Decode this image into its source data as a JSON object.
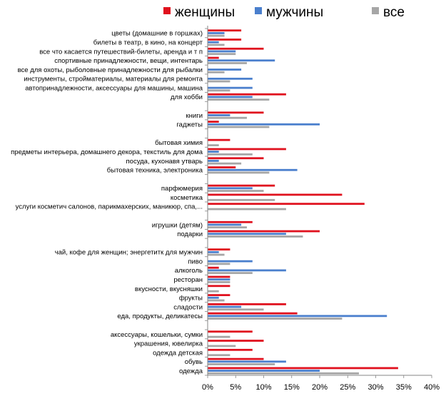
{
  "chart_data": {
    "type": "bar",
    "orientation": "horizontal",
    "xlim": [
      0,
      40
    ],
    "x_ticks": [
      "0%",
      "5%",
      "10%",
      "15%",
      "20%",
      "25%",
      "30%",
      "35%",
      "40%"
    ],
    "grid": false,
    "legend_position": "top",
    "series": [
      {
        "name": "женщины",
        "color": "#e0111e"
      },
      {
        "name": "мужчины",
        "color": "#4a7fcd"
      },
      {
        "name": "все",
        "color": "#a6a6a6"
      }
    ],
    "categories": [
      {
        "label": "цветы (домашние в горшках)",
        "values": [
          6,
          3,
          3
        ]
      },
      {
        "label": "билеты в театр, в кино, на концерт",
        "values": [
          6,
          2,
          3
        ]
      },
      {
        "label": "все что касается путешествий-билеты, аренда и т п",
        "values": [
          10,
          5,
          5
        ]
      },
      {
        "label": "спортивные принадлежности, вещи, интентарь",
        "values": [
          2,
          12,
          7
        ]
      },
      {
        "label": "все для охоты, рыболовные принадлежности для рыбалки",
        "values": [
          0,
          6,
          3
        ]
      },
      {
        "label": "инструменты, стройматериалы, материалы для ремонта",
        "values": [
          0,
          8,
          4
        ]
      },
      {
        "label": "автопринадлежности, аксессуары для машины, машина",
        "values": [
          0,
          8,
          4
        ]
      },
      {
        "label": "для хобби",
        "values": [
          14,
          8,
          11
        ]
      },
      {
        "label": "",
        "values": [
          0,
          0,
          0
        ]
      },
      {
        "label": "книги",
        "values": [
          10,
          4,
          7
        ]
      },
      {
        "label": "гаджеты",
        "values": [
          2,
          20,
          11
        ]
      },
      {
        "label": "",
        "values": [
          0,
          0,
          0
        ]
      },
      {
        "label": "бытовая химия",
        "values": [
          4,
          0,
          2
        ]
      },
      {
        "label": "предметы интерьера, домашнего декора, текстиль для дома",
        "values": [
          14,
          2,
          8
        ]
      },
      {
        "label": "посуда, кухонавя утварь",
        "values": [
          10,
          2,
          6
        ]
      },
      {
        "label": "бытовая техника, электроника",
        "values": [
          5,
          16,
          11
        ]
      },
      {
        "label": "",
        "values": [
          0,
          0,
          0
        ]
      },
      {
        "label": "парфюмерия",
        "values": [
          12,
          8,
          10
        ]
      },
      {
        "label": "косметика",
        "values": [
          24,
          0,
          12
        ]
      },
      {
        "label": "услуги косметич салонов, парикмахерских, маникюр, спа,...",
        "values": [
          28,
          0,
          14
        ]
      },
      {
        "label": "",
        "values": [
          0,
          0,
          0
        ]
      },
      {
        "label": "игрушки (детям)",
        "values": [
          8,
          6,
          7
        ]
      },
      {
        "label": "подарки",
        "values": [
          20,
          14,
          17
        ]
      },
      {
        "label": "",
        "values": [
          0,
          0,
          0
        ]
      },
      {
        "label": "чай, кофе для женщин; энергетитк для мужчин",
        "values": [
          4,
          2,
          3
        ]
      },
      {
        "label": "пиво",
        "values": [
          0,
          8,
          4
        ]
      },
      {
        "label": "алкоголь",
        "values": [
          2,
          14,
          8
        ]
      },
      {
        "label": "ресторан",
        "values": [
          4,
          4,
          4
        ]
      },
      {
        "label": "вкусности, вкусняшки",
        "values": [
          4,
          0,
          2
        ]
      },
      {
        "label": "фрукты",
        "values": [
          4,
          2,
          3
        ]
      },
      {
        "label": "сладости",
        "values": [
          14,
          6,
          10
        ]
      },
      {
        "label": "еда, продукты, деликатесы",
        "values": [
          16,
          32,
          24
        ]
      },
      {
        "label": "",
        "values": [
          0,
          0,
          0
        ]
      },
      {
        "label": "аксессуары, кошельки, сумки",
        "values": [
          8,
          0,
          4
        ]
      },
      {
        "label": "украшения, ювелирка",
        "values": [
          10,
          0,
          5
        ]
      },
      {
        "label": "одежда детская",
        "values": [
          8,
          0,
          4
        ]
      },
      {
        "label": "обувь",
        "values": [
          10,
          14,
          12
        ]
      },
      {
        "label": "одежда",
        "values": [
          34,
          20,
          27
        ]
      }
    ]
  }
}
